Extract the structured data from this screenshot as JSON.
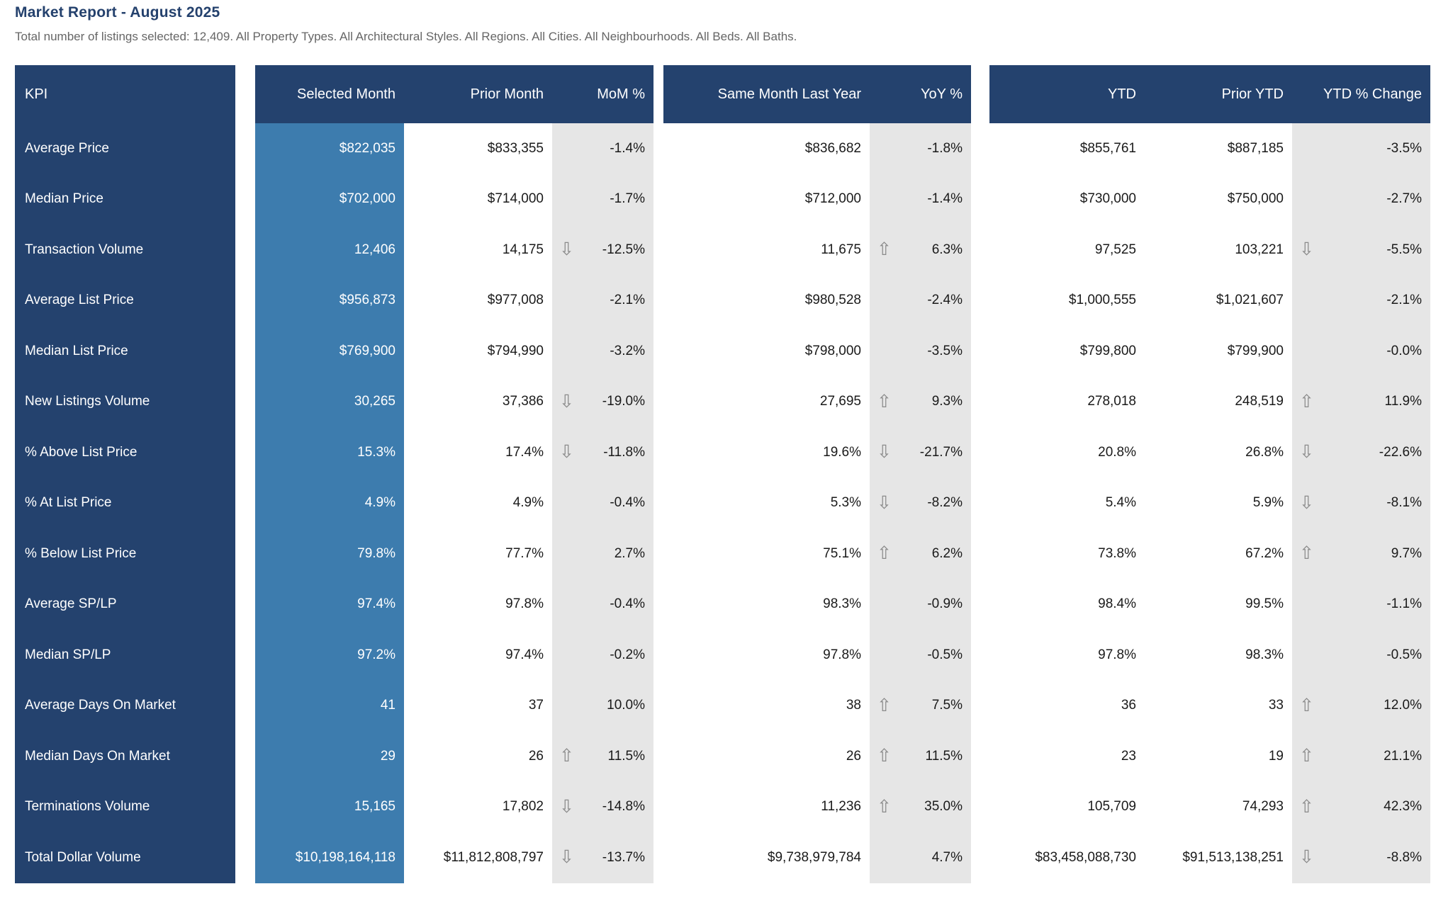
{
  "header": {
    "title": "Market Report - August 2025",
    "subtitle": "Total number of listings selected: 12,409. All Property Types. All Architectural Styles. All Regions. All Cities. All Neighbourhoods. All Beds. All Baths."
  },
  "icons": {
    "up_arrow": "⇧",
    "down_arrow": "⇩"
  },
  "colors": {
    "header_bg": "#24426E",
    "selected_month_bg": "#3D7CAE",
    "percent_band_bg": "#E6E6E6",
    "title_text": "#24416D",
    "subtitle_text": "#666666",
    "body_text": "#1A1A1A",
    "arrow": "#8A8A8A"
  },
  "chart_data": {
    "type": "table",
    "title": "Market Report - August 2025",
    "headers": {
      "kpi": "KPI",
      "selected": "Selected Month",
      "prior": "Prior Month",
      "mom": "MoM %",
      "smly": "Same Month Last Year",
      "yoy": "YoY %",
      "ytd": "YTD",
      "prior_ytd": "Prior YTD",
      "ytd_change": "YTD % Change"
    },
    "rows": [
      {
        "kpi": "Average Price",
        "selected": "$822,035",
        "prior": "$833,355",
        "mom_arrow": "",
        "mom": "-1.4%",
        "smly": "$836,682",
        "yoy_arrow": "",
        "yoy": "-1.8%",
        "ytd": "$855,761",
        "prior_ytd": "$887,185",
        "ytd_arrow": "",
        "ytd_change": "-3.5%"
      },
      {
        "kpi": "Median Price",
        "selected": "$702,000",
        "prior": "$714,000",
        "mom_arrow": "",
        "mom": "-1.7%",
        "smly": "$712,000",
        "yoy_arrow": "",
        "yoy": "-1.4%",
        "ytd": "$730,000",
        "prior_ytd": "$750,000",
        "ytd_arrow": "",
        "ytd_change": "-2.7%"
      },
      {
        "kpi": "Transaction Volume",
        "selected": "12,406",
        "prior": "14,175",
        "mom_arrow": "down",
        "mom": "-12.5%",
        "smly": "11,675",
        "yoy_arrow": "up",
        "yoy": "6.3%",
        "ytd": "97,525",
        "prior_ytd": "103,221",
        "ytd_arrow": "down",
        "ytd_change": "-5.5%"
      },
      {
        "kpi": "Average List Price",
        "selected": "$956,873",
        "prior": "$977,008",
        "mom_arrow": "",
        "mom": "-2.1%",
        "smly": "$980,528",
        "yoy_arrow": "",
        "yoy": "-2.4%",
        "ytd": "$1,000,555",
        "prior_ytd": "$1,021,607",
        "ytd_arrow": "",
        "ytd_change": "-2.1%"
      },
      {
        "kpi": "Median List Price",
        "selected": "$769,900",
        "prior": "$794,990",
        "mom_arrow": "",
        "mom": "-3.2%",
        "smly": "$798,000",
        "yoy_arrow": "",
        "yoy": "-3.5%",
        "ytd": "$799,800",
        "prior_ytd": "$799,900",
        "ytd_arrow": "",
        "ytd_change": "-0.0%"
      },
      {
        "kpi": "New Listings Volume",
        "selected": "30,265",
        "prior": "37,386",
        "mom_arrow": "down",
        "mom": "-19.0%",
        "smly": "27,695",
        "yoy_arrow": "up",
        "yoy": "9.3%",
        "ytd": "278,018",
        "prior_ytd": "248,519",
        "ytd_arrow": "up",
        "ytd_change": "11.9%"
      },
      {
        "kpi": "% Above List Price",
        "selected": "15.3%",
        "prior": "17.4%",
        "mom_arrow": "down",
        "mom": "-11.8%",
        "smly": "19.6%",
        "yoy_arrow": "down",
        "yoy": "-21.7%",
        "ytd": "20.8%",
        "prior_ytd": "26.8%",
        "ytd_arrow": "down",
        "ytd_change": "-22.6%"
      },
      {
        "kpi": "% At List Price",
        "selected": "4.9%",
        "prior": "4.9%",
        "mom_arrow": "",
        "mom": "-0.4%",
        "smly": "5.3%",
        "yoy_arrow": "down",
        "yoy": "-8.2%",
        "ytd": "5.4%",
        "prior_ytd": "5.9%",
        "ytd_arrow": "down",
        "ytd_change": "-8.1%"
      },
      {
        "kpi": "% Below List Price",
        "selected": "79.8%",
        "prior": "77.7%",
        "mom_arrow": "",
        "mom": "2.7%",
        "smly": "75.1%",
        "yoy_arrow": "up",
        "yoy": "6.2%",
        "ytd": "73.8%",
        "prior_ytd": "67.2%",
        "ytd_arrow": "up",
        "ytd_change": "9.7%"
      },
      {
        "kpi": "Average SP/LP",
        "selected": "97.4%",
        "prior": "97.8%",
        "mom_arrow": "",
        "mom": "-0.4%",
        "smly": "98.3%",
        "yoy_arrow": "",
        "yoy": "-0.9%",
        "ytd": "98.4%",
        "prior_ytd": "99.5%",
        "ytd_arrow": "",
        "ytd_change": "-1.1%"
      },
      {
        "kpi": "Median SP/LP",
        "selected": "97.2%",
        "prior": "97.4%",
        "mom_arrow": "",
        "mom": "-0.2%",
        "smly": "97.8%",
        "yoy_arrow": "",
        "yoy": "-0.5%",
        "ytd": "97.8%",
        "prior_ytd": "98.3%",
        "ytd_arrow": "",
        "ytd_change": "-0.5%"
      },
      {
        "kpi": "Average Days On Market",
        "selected": "41",
        "prior": "37",
        "mom_arrow": "",
        "mom": "10.0%",
        "smly": "38",
        "yoy_arrow": "up",
        "yoy": "7.5%",
        "ytd": "36",
        "prior_ytd": "33",
        "ytd_arrow": "up",
        "ytd_change": "12.0%"
      },
      {
        "kpi": "Median Days On Market",
        "selected": "29",
        "prior": "26",
        "mom_arrow": "up",
        "mom": "11.5%",
        "smly": "26",
        "yoy_arrow": "up",
        "yoy": "11.5%",
        "ytd": "23",
        "prior_ytd": "19",
        "ytd_arrow": "up",
        "ytd_change": "21.1%"
      },
      {
        "kpi": "Terminations Volume",
        "selected": "15,165",
        "prior": "17,802",
        "mom_arrow": "down",
        "mom": "-14.8%",
        "smly": "11,236",
        "yoy_arrow": "up",
        "yoy": "35.0%",
        "ytd": "105,709",
        "prior_ytd": "74,293",
        "ytd_arrow": "up",
        "ytd_change": "42.3%"
      },
      {
        "kpi": "Total Dollar Volume",
        "selected": "$10,198,164,118",
        "prior": "$11,812,808,797",
        "mom_arrow": "down",
        "mom": "-13.7%",
        "smly": "$9,738,979,784",
        "yoy_arrow": "",
        "yoy": "4.7%",
        "ytd": "$83,458,088,730",
        "prior_ytd": "$91,513,138,251",
        "ytd_arrow": "down",
        "ytd_change": "-8.8%"
      }
    ]
  }
}
